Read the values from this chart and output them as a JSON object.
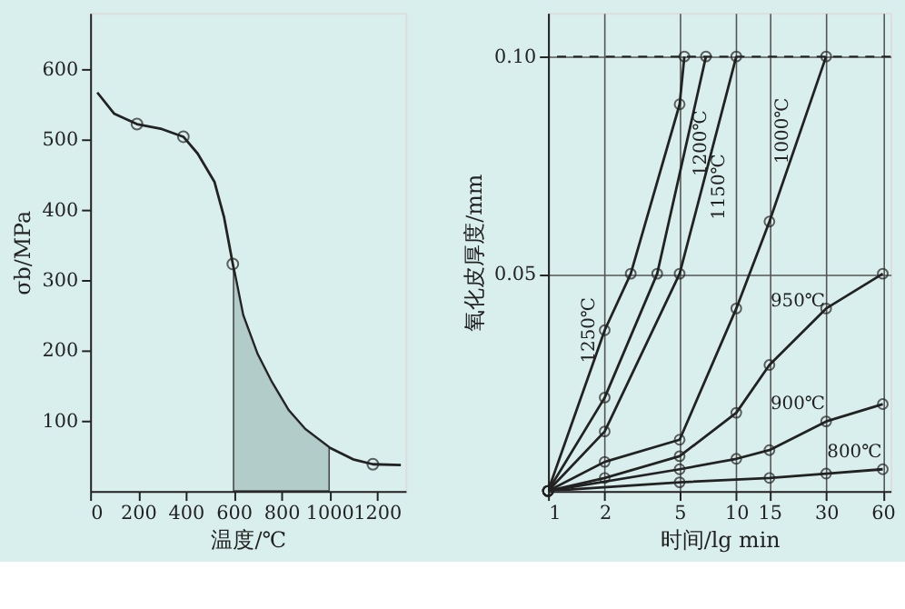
{
  "chart_data": [
    {
      "type": "line",
      "xlabel": "温度/℃",
      "ylabel": "σb/MPa",
      "xlim": [
        0,
        1320
      ],
      "ylim": [
        0,
        680
      ],
      "xticks": [
        0,
        200,
        400,
        600,
        800,
        1000,
        1200
      ],
      "yticks": [
        100,
        200,
        300,
        400,
        500,
        600
      ],
      "grid": false,
      "series": [
        {
          "type": "line",
          "color": "#222222",
          "marker": "none",
          "x": [
            30,
            100,
            196,
            300,
            390,
            450,
            520,
            560,
            597,
            640,
            700,
            760,
            830,
            900,
            1000,
            1100,
            1183,
            1300
          ],
          "values": [
            567,
            537,
            522,
            515,
            504,
            480,
            440,
            390,
            323,
            250,
            195,
            155,
            115,
            88,
            62,
            45,
            38,
            37
          ]
        },
        {
          "type": "scatter",
          "color": "#222222",
          "marker": "circle",
          "x": [
            196,
            390,
            597,
            1183
          ],
          "values": [
            522,
            504,
            323,
            38
          ]
        },
        {
          "type": "area",
          "color": "#a9c4c2",
          "x": [
            600,
            640,
            700,
            760,
            830,
            900,
            1000
          ],
          "values": [
            318,
            250,
            195,
            155,
            115,
            88,
            62
          ]
        }
      ]
    },
    {
      "type": "line",
      "xlabel": "时间/lg min",
      "ylabel": "氧化皮厚度/mm",
      "log": "x",
      "xlim": [
        1,
        66
      ],
      "ylim": [
        0,
        0.11
      ],
      "xticks": [
        1,
        2,
        5,
        10,
        15,
        30,
        60
      ],
      "yticks": [
        {
          "value": 0.05,
          "label": "0.05"
        },
        {
          "value": 0.1,
          "label": "0.10"
        }
      ],
      "grid": true,
      "marker": "circle",
      "ref_lines": [
        {
          "axis": "y",
          "value": 0.1,
          "line_style": "dashed",
          "color": "#222222"
        }
      ],
      "series": [
        {
          "name": "1250℃",
          "color": "#222222",
          "x": [
            1,
            2,
            2.75,
            5,
            5.3
          ],
          "values": [
            0,
            0.037,
            0.05,
            0.089,
            0.1
          ]
        },
        {
          "name": "1200℃",
          "color": "#222222",
          "x": [
            1,
            2,
            3.8,
            6.9
          ],
          "values": [
            0,
            0.0215,
            0.05,
            0.1
          ]
        },
        {
          "name": "1150℃",
          "color": "#222222",
          "x": [
            1,
            2,
            5,
            10
          ],
          "values": [
            0,
            0.0137,
            0.05,
            0.1
          ]
        },
        {
          "name": "1000℃",
          "color": "#222222",
          "x": [
            1,
            2,
            5,
            10,
            15,
            30
          ],
          "values": [
            0,
            0.0067,
            0.0118,
            0.042,
            0.062,
            0.1
          ]
        },
        {
          "name": "950℃",
          "color": "#222222",
          "x": [
            1,
            2,
            5,
            10,
            15,
            30,
            60
          ],
          "values": [
            0,
            0.003,
            0.008,
            0.018,
            0.029,
            0.042,
            0.05
          ]
        },
        {
          "name": "900℃",
          "color": "#222222",
          "x": [
            1,
            5,
            10,
            15,
            30,
            60
          ],
          "values": [
            0,
            0.005,
            0.0074,
            0.0094,
            0.016,
            0.02
          ]
        },
        {
          "name": "800℃",
          "color": "#222222",
          "x": [
            1,
            5,
            15,
            30,
            60
          ],
          "values": [
            0,
            0.002,
            0.003,
            0.004,
            0.005
          ]
        }
      ]
    }
  ]
}
